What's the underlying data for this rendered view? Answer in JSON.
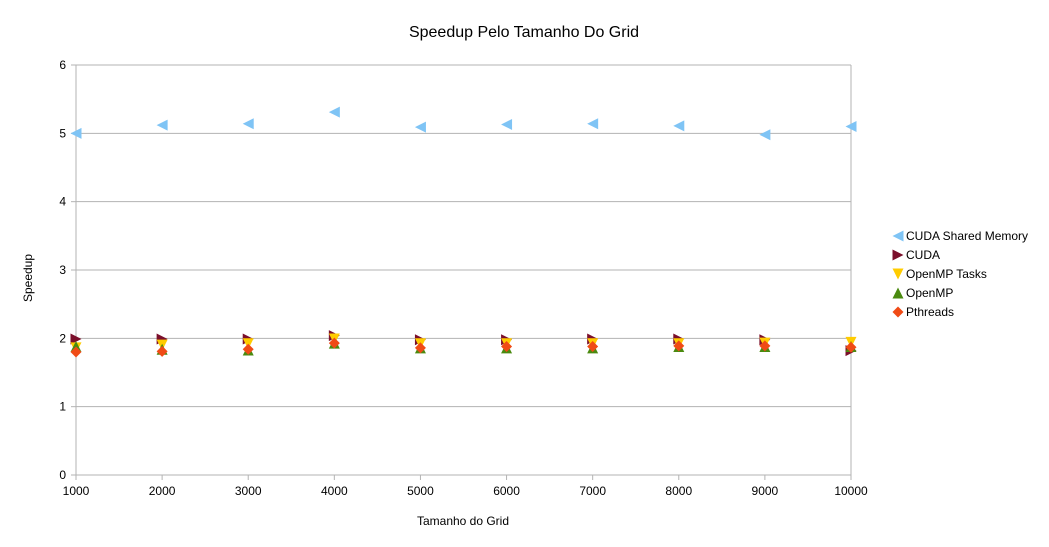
{
  "chart_data": {
    "type": "scatter",
    "title": "Speedup Pelo Tamanho Do Grid",
    "xlabel": "Tamanho do Grid",
    "ylabel": "Speedup",
    "x": [
      1000,
      2000,
      3000,
      4000,
      5000,
      6000,
      7000,
      8000,
      9000,
      10000
    ],
    "x_ticks": [
      "1000",
      "2000",
      "3000",
      "4000",
      "5000",
      "6000",
      "7000",
      "8000",
      "9000",
      "10000"
    ],
    "xlim": [
      1000,
      10000
    ],
    "ylim": [
      0,
      6
    ],
    "y_ticks": [
      "0",
      "1",
      "2",
      "3",
      "4",
      "5",
      "6"
    ],
    "grid": "horizontal",
    "legend_position": "right",
    "series": [
      {
        "name": "CUDA Shared Memory",
        "marker": "triangle-left",
        "color": "#7fc4f5",
        "values": [
          5.0,
          5.12,
          5.14,
          5.31,
          5.09,
          5.13,
          5.14,
          5.11,
          4.98,
          5.1
        ]
      },
      {
        "name": "CUDA",
        "marker": "triangle-right",
        "color": "#7b0f2b",
        "values": [
          1.99,
          1.99,
          1.99,
          2.04,
          1.98,
          1.98,
          1.99,
          1.99,
          1.98,
          1.82
        ]
      },
      {
        "name": "OpenMP Tasks",
        "marker": "triangle-down",
        "color": "#ffcc00",
        "values": [
          1.86,
          1.9,
          1.92,
          1.99,
          1.92,
          1.92,
          1.92,
          1.92,
          1.93,
          1.94
        ]
      },
      {
        "name": "OpenMP",
        "marker": "triangle-up",
        "color": "#4a8a0f",
        "values": [
          1.88,
          1.84,
          1.83,
          1.93,
          1.86,
          1.86,
          1.86,
          1.88,
          1.88,
          1.88
        ]
      },
      {
        "name": "Pthreads",
        "marker": "diamond",
        "color": "#f04b16",
        "values": [
          1.8,
          1.81,
          1.84,
          1.93,
          1.86,
          1.88,
          1.88,
          1.89,
          1.89,
          1.87
        ]
      }
    ]
  }
}
